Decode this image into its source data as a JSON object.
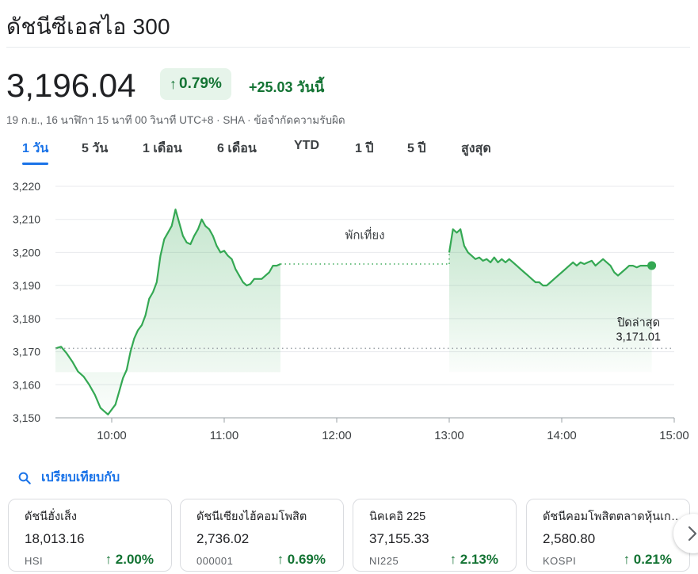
{
  "header": {
    "title": "ดัชนีซีเอสไอ 300"
  },
  "quote": {
    "price": "3,196.04",
    "pct_arrow": "↑",
    "pct_change": "0.79%",
    "abs_change": "+25.03 วันนี้",
    "meta": "19 ก.ย., 16 นาฬิกา 15 นาที 00 วินาที UTC+8 · SHA · ข้อจำกัดความรับผิด",
    "accent_color": "#137333",
    "badge_bg": "#e6f4ea"
  },
  "tabs": [
    {
      "label": "1 วัน",
      "active": true
    },
    {
      "label": "5 วัน",
      "active": false
    },
    {
      "label": "1 เดือน",
      "active": false
    },
    {
      "label": "6 เดือน",
      "active": false
    },
    {
      "label": "YTD",
      "active": false
    },
    {
      "label": "1 ปี",
      "active": false
    },
    {
      "label": "5 ปี",
      "active": false
    },
    {
      "label": "สูงสุด",
      "active": false
    }
  ],
  "chart_data": {
    "type": "area",
    "y_ticks": [
      "3,220",
      "3,210",
      "3,200",
      "3,190",
      "3,180",
      "3,170",
      "3,160",
      "3,150"
    ],
    "x_ticks": [
      "10:00",
      "11:00",
      "12:00",
      "13:00",
      "14:00",
      "15:00"
    ],
    "ylim": [
      3150,
      3220
    ],
    "xlim": [
      "09:30",
      "15:00"
    ],
    "grid": true,
    "line_color": "#34a853",
    "previous_close": {
      "label": "ปิดล่าสุด",
      "value_label": "3,171.01",
      "value": 3171.01
    },
    "break": {
      "label": "พักเที่ยง",
      "from": "11:30",
      "to": "13:00"
    },
    "morning_session": [
      [
        "09:30",
        3171
      ],
      [
        "09:33",
        3171.5
      ],
      [
        "09:36",
        3169.5
      ],
      [
        "09:39",
        3167
      ],
      [
        "09:42",
        3164
      ],
      [
        "09:45",
        3162.5
      ],
      [
        "09:48",
        3160
      ],
      [
        "09:51",
        3157
      ],
      [
        "09:54",
        3153
      ],
      [
        "09:56",
        3152
      ],
      [
        "09:58",
        3151
      ],
      [
        "10:00",
        3152.5
      ],
      [
        "10:02",
        3154
      ],
      [
        "10:04",
        3158
      ],
      [
        "10:06",
        3162
      ],
      [
        "10:08",
        3164.5
      ],
      [
        "10:10",
        3170
      ],
      [
        "10:12",
        3174
      ],
      [
        "10:14",
        3176.5
      ],
      [
        "10:16",
        3178
      ],
      [
        "10:18",
        3181
      ],
      [
        "10:20",
        3186
      ],
      [
        "10:22",
        3188
      ],
      [
        "10:24",
        3191
      ],
      [
        "10:26",
        3199
      ],
      [
        "10:28",
        3204
      ],
      [
        "10:30",
        3206
      ],
      [
        "10:32",
        3208
      ],
      [
        "10:34",
        3213
      ],
      [
        "10:36",
        3209
      ],
      [
        "10:38",
        3205
      ],
      [
        "10:40",
        3203
      ],
      [
        "10:42",
        3202.5
      ],
      [
        "10:44",
        3205
      ],
      [
        "10:46",
        3207
      ],
      [
        "10:48",
        3210
      ],
      [
        "10:50",
        3208
      ],
      [
        "10:52",
        3207
      ],
      [
        "10:54",
        3205
      ],
      [
        "10:56",
        3202
      ],
      [
        "10:58",
        3200
      ],
      [
        "11:00",
        3200.5
      ],
      [
        "11:02",
        3199
      ],
      [
        "11:04",
        3198
      ],
      [
        "11:06",
        3195
      ],
      [
        "11:08",
        3193
      ],
      [
        "11:10",
        3191
      ],
      [
        "11:12",
        3190
      ],
      [
        "11:14",
        3190.5
      ],
      [
        "11:16",
        3192
      ],
      [
        "11:18",
        3192
      ],
      [
        "11:20",
        3192
      ],
      [
        "11:22",
        3193
      ],
      [
        "11:24",
        3194
      ],
      [
        "11:26",
        3196
      ],
      [
        "11:28",
        3196
      ],
      [
        "11:30",
        3196.5
      ]
    ],
    "afternoon_session": [
      [
        "13:00",
        3200
      ],
      [
        "13:02",
        3207
      ],
      [
        "13:04",
        3206
      ],
      [
        "13:06",
        3207
      ],
      [
        "13:08",
        3202
      ],
      [
        "13:10",
        3200
      ],
      [
        "13:12",
        3199
      ],
      [
        "13:14",
        3198
      ],
      [
        "13:16",
        3198.5
      ],
      [
        "13:18",
        3197.5
      ],
      [
        "13:20",
        3198
      ],
      [
        "13:22",
        3197
      ],
      [
        "13:24",
        3198.5
      ],
      [
        "13:26",
        3197
      ],
      [
        "13:28",
        3198
      ],
      [
        "13:30",
        3197
      ],
      [
        "13:32",
        3198
      ],
      [
        "13:34",
        3197
      ],
      [
        "13:36",
        3196
      ],
      [
        "13:38",
        3195
      ],
      [
        "13:40",
        3194
      ],
      [
        "13:42",
        3193
      ],
      [
        "13:44",
        3192
      ],
      [
        "13:46",
        3191
      ],
      [
        "13:48",
        3191
      ],
      [
        "13:50",
        3190
      ],
      [
        "13:52",
        3190
      ],
      [
        "13:54",
        3191
      ],
      [
        "13:56",
        3192
      ],
      [
        "13:58",
        3193
      ],
      [
        "14:00",
        3194
      ],
      [
        "14:02",
        3195
      ],
      [
        "14:04",
        3196
      ],
      [
        "14:06",
        3197
      ],
      [
        "14:08",
        3196
      ],
      [
        "14:10",
        3197
      ],
      [
        "14:12",
        3196.5
      ],
      [
        "14:14",
        3197
      ],
      [
        "14:16",
        3197.5
      ],
      [
        "14:18",
        3196
      ],
      [
        "14:20",
        3197
      ],
      [
        "14:22",
        3198
      ],
      [
        "14:24",
        3197
      ],
      [
        "14:26",
        3196
      ],
      [
        "14:28",
        3194
      ],
      [
        "14:30",
        3193
      ],
      [
        "14:32",
        3194
      ],
      [
        "14:34",
        3195
      ],
      [
        "14:36",
        3196
      ],
      [
        "14:38",
        3196
      ],
      [
        "14:40",
        3195.5
      ],
      [
        "14:42",
        3196
      ],
      [
        "14:44",
        3196
      ],
      [
        "14:46",
        3196
      ],
      [
        "14:48",
        3196.04
      ]
    ]
  },
  "compare": {
    "label": "เปรียบเทียบกับ",
    "icon": "search-icon"
  },
  "related": [
    {
      "name": "ดัชนีฮั่งเส็ง",
      "value": "18,013.16",
      "code": "HSI",
      "arrow": "↑",
      "pct": "2.00%"
    },
    {
      "name": "ดัชนีเซียงไฮ้คอมโพสิต",
      "value": "2,736.02",
      "code": "000001",
      "arrow": "↑",
      "pct": "0.69%"
    },
    {
      "name": "นิคเคอิ 225",
      "value": "37,155.33",
      "code": "NI225",
      "arrow": "↑",
      "pct": "2.13%"
    },
    {
      "name": "ดัชนีคอมโพสิตตลาดหุ้นเกาหลี",
      "value": "2,580.80",
      "code": "KOSPI",
      "arrow": "↑",
      "pct": "0.21%"
    }
  ]
}
